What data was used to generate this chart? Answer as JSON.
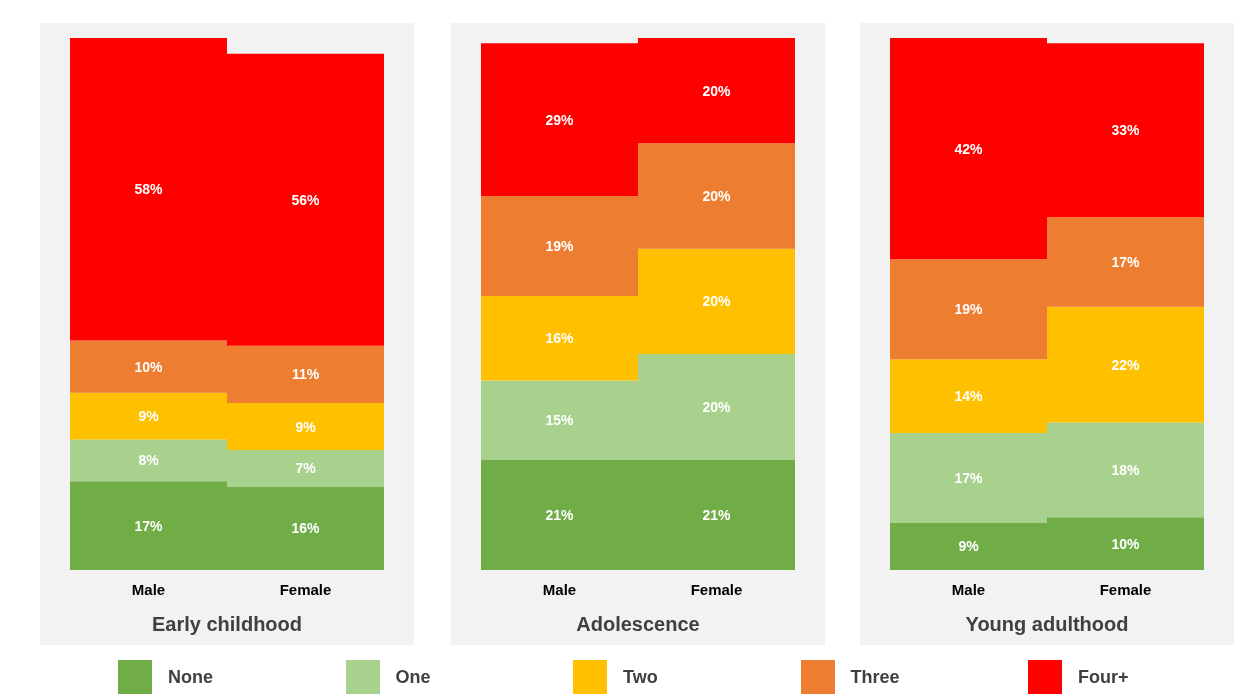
{
  "chart_data": [
    {
      "type": "bar",
      "title": "Early childhood",
      "categories": [
        "Male",
        "Female"
      ],
      "stacked": true,
      "legend": "bottom",
      "series": [
        {
          "name": "None",
          "color": "#70ad47",
          "values": [
            17,
            16
          ],
          "value_labels": [
            "17%",
            "16%"
          ]
        },
        {
          "name": "One",
          "color": "#a9d18e",
          "values": [
            8,
            7
          ],
          "value_labels": [
            "8%",
            "7%"
          ]
        },
        {
          "name": "Two",
          "color": "#ffc000",
          "values": [
            9,
            9
          ],
          "value_labels": [
            "9%",
            "9%"
          ]
        },
        {
          "name": "Three",
          "color": "#ed7d31",
          "values": [
            10,
            11
          ],
          "value_labels": [
            "10%",
            "11%"
          ]
        },
        {
          "name": "Four+",
          "color": "#ff0000",
          "values": [
            58,
            56
          ],
          "value_labels": [
            "58%",
            "56%"
          ]
        }
      ]
    },
    {
      "type": "bar",
      "title": "Adolescence",
      "categories": [
        "Male",
        "Female"
      ],
      "stacked": true,
      "series": [
        {
          "color": "#70ad47",
          "values": [
            21,
            21
          ],
          "value_labels": [
            "21%",
            "21%"
          ]
        },
        {
          "color": "#a9d18e",
          "values": [
            15,
            20
          ],
          "value_labels": [
            "15%",
            "20%"
          ]
        },
        {
          "color": "#ffc000",
          "values": [
            16,
            20
          ],
          "value_labels": [
            "16%",
            "20%"
          ]
        },
        {
          "color": "#ed7d31",
          "values": [
            19,
            20
          ],
          "value_labels": [
            "19%",
            "20%"
          ]
        },
        {
          "color": "#ff0000",
          "values": [
            29,
            20
          ],
          "value_labels": [
            "29%",
            "20%"
          ]
        }
      ]
    },
    {
      "type": "bar",
      "title": "Young adulthood",
      "categories": [
        "Male",
        "Female"
      ],
      "stacked": true,
      "series": [
        {
          "color": "#70ad47",
          "values": [
            9,
            10
          ],
          "value_labels": [
            "9%",
            "10%"
          ]
        },
        {
          "color": "#a9d18e",
          "values": [
            17,
            18
          ],
          "value_labels": [
            "17%",
            "18%"
          ]
        },
        {
          "color": "#ffc000",
          "values": [
            14,
            22
          ],
          "value_labels": [
            "14%",
            "22%"
          ]
        },
        {
          "color": "#ed7d31",
          "values": [
            19,
            17
          ],
          "value_labels": [
            "19%",
            "17%"
          ]
        },
        {
          "color": "#ff0000",
          "values": [
            42,
            33
          ],
          "value_labels": [
            "42%",
            "33%"
          ]
        }
      ]
    }
  ]
}
